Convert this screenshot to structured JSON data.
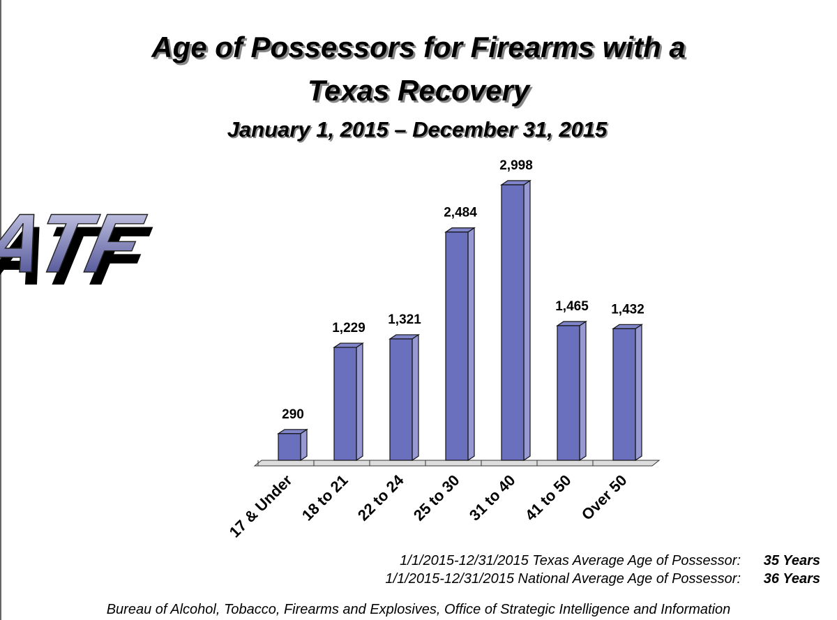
{
  "chart_data": {
    "type": "bar3d",
    "title": [
      "Age of Possessors for Firearms with a",
      "Texas Recovery"
    ],
    "subtitle": "January 1, 2015 – December 31, 2015",
    "logo": "ATF",
    "categories": [
      "17 & Under",
      "18 to 21",
      "22 to 24",
      "25 to 30",
      "31 to 40",
      "41 to 50",
      "Over 50"
    ],
    "values": [
      290,
      1229,
      1321,
      2484,
      2998,
      1465,
      1432
    ],
    "value_labels": [
      "290",
      "1,229",
      "1,321",
      "2,484",
      "2,998",
      "1,465",
      "1,432"
    ],
    "color": "#6a6fbe",
    "notes": [
      {
        "label": "1/1/2015-12/31/2015 Texas Average Age of Possessor:",
        "value": "35 Years"
      },
      {
        "label": "1/1/2015-12/31/2015 National Average Age of Possessor:",
        "value": "36 Years"
      }
    ],
    "source": "Bureau of Alcohol, Tobacco, Firearms and Explosives, Office of Strategic Intelligence and Information"
  }
}
